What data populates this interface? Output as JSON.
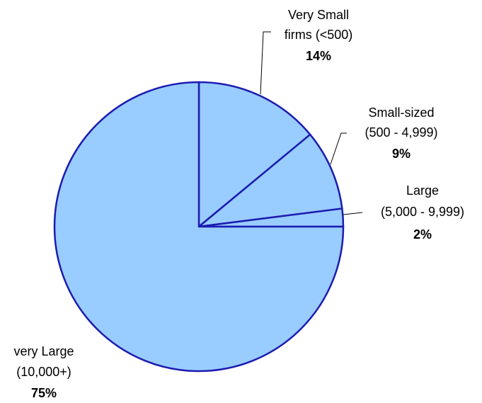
{
  "chart_data": {
    "type": "pie",
    "categories": [
      [
        "Very Small",
        "firms (<500)"
      ],
      [
        "Small-sized",
        "(500 - 4,999)"
      ],
      [
        "Large",
        "(5,000 - 9,999)"
      ],
      [
        "very Large",
        "(10,000+)"
      ]
    ],
    "values": [
      14,
      9,
      2,
      75
    ],
    "value_labels": [
      "14%",
      "9%",
      "2%",
      "75%"
    ],
    "color": "#99ccff",
    "edgecolor": "#1c1cb0"
  }
}
